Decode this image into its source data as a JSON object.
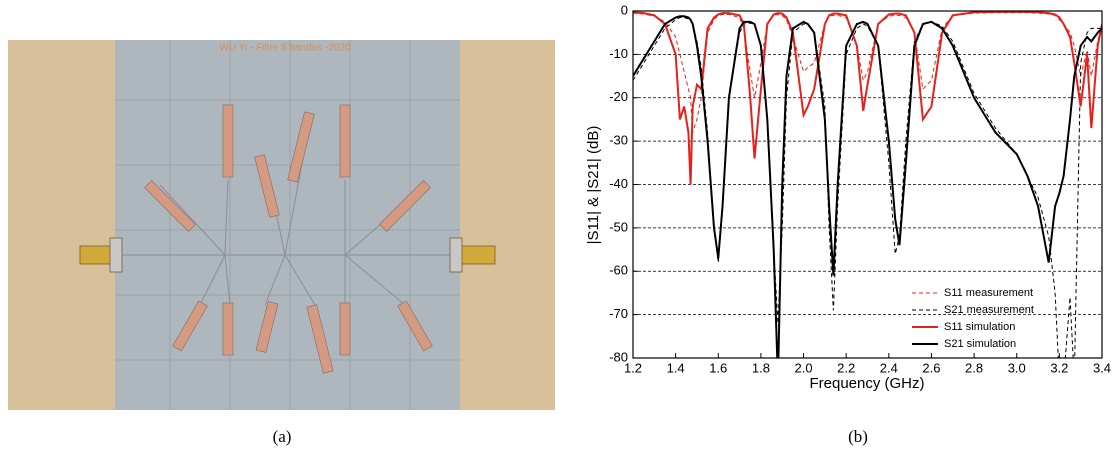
{
  "photo": {
    "label": "WU Yi - Filtre 5 bandes -2020",
    "caption": "(a)"
  },
  "chart_data": {
    "type": "line",
    "caption": "(b)",
    "x_label": "Frequency (GHz)",
    "y_label": "|S11| & |S21| (dB)",
    "xlim": [
      1.2,
      3.4
    ],
    "ylim": [
      -80,
      0
    ],
    "xticks": [
      1.2,
      1.4,
      1.6,
      1.8,
      {
        "value": 2,
        "label": "2.0"
      },
      2.2,
      2.4,
      2.6,
      2.8,
      {
        "value": 3,
        "label": "3.0"
      },
      3.2,
      3.4
    ],
    "yticks": [
      0,
      -10,
      -20,
      -30,
      -40,
      -50,
      -60,
      -70,
      -80
    ],
    "grid": true,
    "legend": "lower right",
    "x": [
      1.2,
      1.25,
      1.3,
      1.35,
      1.4,
      1.42,
      1.44,
      1.46,
      1.47,
      1.48,
      1.5,
      1.52,
      1.55,
      1.58,
      1.6,
      1.62,
      1.65,
      1.7,
      1.72,
      1.75,
      1.77,
      1.8,
      1.83,
      1.86,
      1.88,
      1.9,
      1.92,
      1.95,
      2.0,
      2.02,
      2.05,
      2.1,
      2.12,
      2.14,
      2.16,
      2.2,
      2.25,
      2.28,
      2.3,
      2.35,
      2.4,
      2.43,
      2.45,
      2.48,
      2.52,
      2.56,
      2.6,
      2.65,
      2.7,
      2.8,
      2.9,
      3.0,
      3.05,
      3.1,
      3.15,
      3.18,
      3.2,
      3.22,
      3.25,
      3.27,
      3.3,
      3.33,
      3.35,
      3.38,
      3.4
    ],
    "series": [
      {
        "name": "S11 measurement",
        "color": "#e8201a",
        "dashed": true,
        "values": [
          -0.5,
          -0.7,
          -1.2,
          -2.5,
          -6,
          -10,
          -14,
          -18,
          -20,
          -28,
          -25,
          -20,
          -5,
          -2,
          -1,
          -0.8,
          -0.8,
          -1.5,
          -4,
          -14,
          -20,
          -12,
          -3,
          -1,
          -0.8,
          -1,
          -2,
          -6,
          -14,
          -13,
          -12,
          -3,
          -1.2,
          -1,
          -1,
          -1.5,
          -8,
          -16,
          -14,
          -3,
          -1.2,
          -1,
          -1,
          -1.5,
          -5,
          -18,
          -16,
          -4,
          -1,
          -0.5,
          -0.4,
          -0.4,
          -0.4,
          -0.5,
          -0.7,
          -1,
          -2,
          -3,
          -5,
          -8,
          -15,
          -9,
          -15,
          -7,
          -3
        ]
      },
      {
        "name": "S21 measurement",
        "color": "#000000",
        "dashed": true,
        "values": [
          -16,
          -12,
          -8,
          -4,
          -2,
          -1.5,
          -1.5,
          -1.8,
          -2.2,
          -3,
          -7,
          -13,
          -28,
          -50,
          -58,
          -44,
          -20,
          -5,
          -3,
          -2.8,
          -3,
          -8,
          -25,
          -55,
          -72,
          -50,
          -20,
          -5,
          -3,
          -3,
          -5,
          -22,
          -50,
          -69,
          -45,
          -10,
          -4,
          -3,
          -3.5,
          -8,
          -35,
          -56,
          -52,
          -30,
          -7,
          -3,
          -2.5,
          -3.5,
          -7,
          -19,
          -27,
          -33,
          -38,
          -43,
          -52,
          -65,
          -85,
          -85,
          -66,
          -85,
          -12,
          -5,
          -4,
          -4,
          -4
        ]
      },
      {
        "name": "S11 simulation",
        "color": "#e8201a",
        "dashed": false,
        "values": [
          -0.3,
          -0.5,
          -1,
          -3,
          -10,
          -25,
          -22,
          -28,
          -40,
          -22,
          -17,
          -18,
          -4,
          -1.5,
          -0.8,
          -0.5,
          -0.5,
          -1,
          -3,
          -20,
          -34,
          -18,
          -3,
          -0.8,
          -0.5,
          -0.6,
          -1.5,
          -5,
          -24,
          -22,
          -18,
          -3,
          -1,
          -0.6,
          -0.6,
          -1,
          -8,
          -23,
          -17,
          -3,
          -0.8,
          -0.6,
          -0.6,
          -1,
          -5,
          -25,
          -22,
          -5,
          -1,
          -0.3,
          -0.2,
          -0.2,
          -0.2,
          -0.3,
          -0.5,
          -0.8,
          -1.5,
          -3,
          -6,
          -12,
          -22,
          -10,
          -27,
          -8,
          -3
        ]
      },
      {
        "name": "S21 simulation",
        "color": "#000000",
        "dashed": false,
        "values": [
          -15,
          -11,
          -7,
          -3,
          -1.5,
          -1.2,
          -1.2,
          -1.5,
          -2,
          -3,
          -8,
          -15,
          -30,
          -50,
          -57,
          -45,
          -20,
          -4,
          -2.5,
          -2.5,
          -3,
          -8,
          -25,
          -55,
          -85,
          -40,
          -15,
          -4,
          -2.5,
          -3,
          -5,
          -25,
          -45,
          -61,
          -40,
          -8,
          -3,
          -2.5,
          -3,
          -8,
          -30,
          -48,
          -54,
          -35,
          -8,
          -3,
          -2.5,
          -4,
          -8,
          -20,
          -28,
          -33,
          -38,
          -45,
          -58,
          -45,
          -42,
          -38,
          -25,
          -15,
          -8,
          -6,
          -7,
          -5,
          -4
        ]
      }
    ]
  }
}
